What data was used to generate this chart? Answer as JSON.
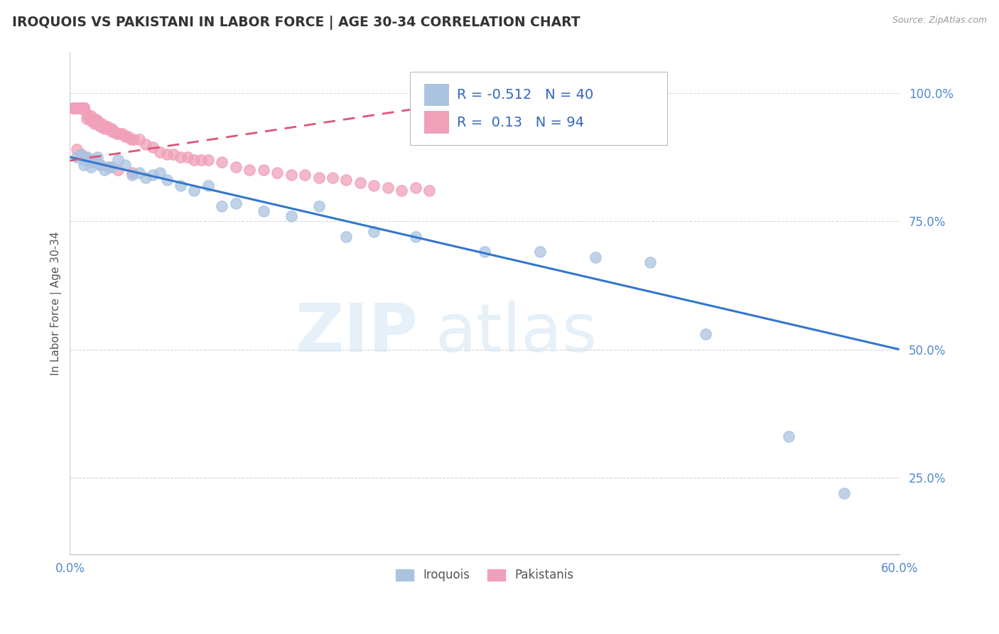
{
  "title": "IROQUOIS VS PAKISTANI IN LABOR FORCE | AGE 30-34 CORRELATION CHART",
  "source": "Source: ZipAtlas.com",
  "ylabel": "In Labor Force | Age 30-34",
  "xlim": [
    0.0,
    0.6
  ],
  "ylim": [
    0.1,
    1.08
  ],
  "yticks": [
    0.25,
    0.5,
    0.75,
    1.0
  ],
  "ytick_labels": [
    "25.0%",
    "50.0%",
    "75.0%",
    "100.0%"
  ],
  "iroquois_R": -0.512,
  "iroquois_N": 40,
  "pakistani_R": 0.13,
  "pakistani_N": 94,
  "iroquois_color": "#aac4e0",
  "pakistani_color": "#f0a0b8",
  "trend_iroquois_color": "#3377cc",
  "trend_pakistani_color": "#dd5577",
  "background_color": "#ffffff",
  "grid_color": "#cccccc",
  "watermark_zip": "ZIP",
  "watermark_atlas": "atlas",
  "iroquois_x": [
    0.005,
    0.008,
    0.01,
    0.01,
    0.012,
    0.015,
    0.015,
    0.018,
    0.02,
    0.02,
    0.022,
    0.025,
    0.028,
    0.03,
    0.035,
    0.04,
    0.045,
    0.05,
    0.055,
    0.06,
    0.065,
    0.07,
    0.08,
    0.09,
    0.1,
    0.11,
    0.12,
    0.14,
    0.16,
    0.18,
    0.2,
    0.22,
    0.25,
    0.3,
    0.34,
    0.38,
    0.42,
    0.46,
    0.52,
    0.56
  ],
  "iroquois_y": [
    0.875,
    0.88,
    0.87,
    0.86,
    0.875,
    0.865,
    0.855,
    0.87,
    0.865,
    0.875,
    0.86,
    0.85,
    0.855,
    0.855,
    0.87,
    0.86,
    0.84,
    0.845,
    0.835,
    0.84,
    0.845,
    0.83,
    0.82,
    0.81,
    0.82,
    0.78,
    0.785,
    0.77,
    0.76,
    0.78,
    0.72,
    0.73,
    0.72,
    0.69,
    0.69,
    0.68,
    0.67,
    0.53,
    0.33,
    0.22
  ],
  "pakistani_x": [
    0.002,
    0.003,
    0.004,
    0.005,
    0.006,
    0.006,
    0.007,
    0.007,
    0.008,
    0.008,
    0.009,
    0.009,
    0.01,
    0.01,
    0.01,
    0.01,
    0.01,
    0.01,
    0.01,
    0.01,
    0.01,
    0.01,
    0.01,
    0.01,
    0.01,
    0.01,
    0.01,
    0.012,
    0.012,
    0.013,
    0.014,
    0.015,
    0.015,
    0.016,
    0.017,
    0.018,
    0.018,
    0.019,
    0.02,
    0.02,
    0.021,
    0.022,
    0.023,
    0.024,
    0.025,
    0.026,
    0.027,
    0.028,
    0.03,
    0.03,
    0.032,
    0.034,
    0.036,
    0.038,
    0.04,
    0.042,
    0.044,
    0.046,
    0.05,
    0.055,
    0.06,
    0.065,
    0.07,
    0.075,
    0.08,
    0.085,
    0.09,
    0.095,
    0.1,
    0.11,
    0.12,
    0.13,
    0.14,
    0.15,
    0.16,
    0.17,
    0.18,
    0.19,
    0.2,
    0.21,
    0.22,
    0.23,
    0.24,
    0.25,
    0.26,
    0.005,
    0.008,
    0.012,
    0.015,
    0.018,
    0.022,
    0.028,
    0.035,
    0.045
  ],
  "pakistani_y": [
    0.97,
    0.97,
    0.97,
    0.97,
    0.97,
    0.97,
    0.97,
    0.97,
    0.97,
    0.97,
    0.97,
    0.97,
    0.97,
    0.97,
    0.97,
    0.97,
    0.97,
    0.97,
    0.97,
    0.97,
    0.97,
    0.97,
    0.97,
    0.97,
    0.97,
    0.97,
    0.97,
    0.96,
    0.95,
    0.955,
    0.95,
    0.955,
    0.945,
    0.95,
    0.95,
    0.945,
    0.94,
    0.948,
    0.945,
    0.94,
    0.94,
    0.935,
    0.94,
    0.935,
    0.93,
    0.935,
    0.935,
    0.93,
    0.93,
    0.925,
    0.925,
    0.92,
    0.92,
    0.92,
    0.915,
    0.915,
    0.91,
    0.91,
    0.91,
    0.9,
    0.895,
    0.885,
    0.88,
    0.88,
    0.875,
    0.875,
    0.87,
    0.87,
    0.87,
    0.865,
    0.855,
    0.85,
    0.85,
    0.845,
    0.84,
    0.84,
    0.835,
    0.835,
    0.83,
    0.825,
    0.82,
    0.815,
    0.81,
    0.815,
    0.81,
    0.89,
    0.88,
    0.875,
    0.87,
    0.865,
    0.86,
    0.855,
    0.85,
    0.845
  ]
}
